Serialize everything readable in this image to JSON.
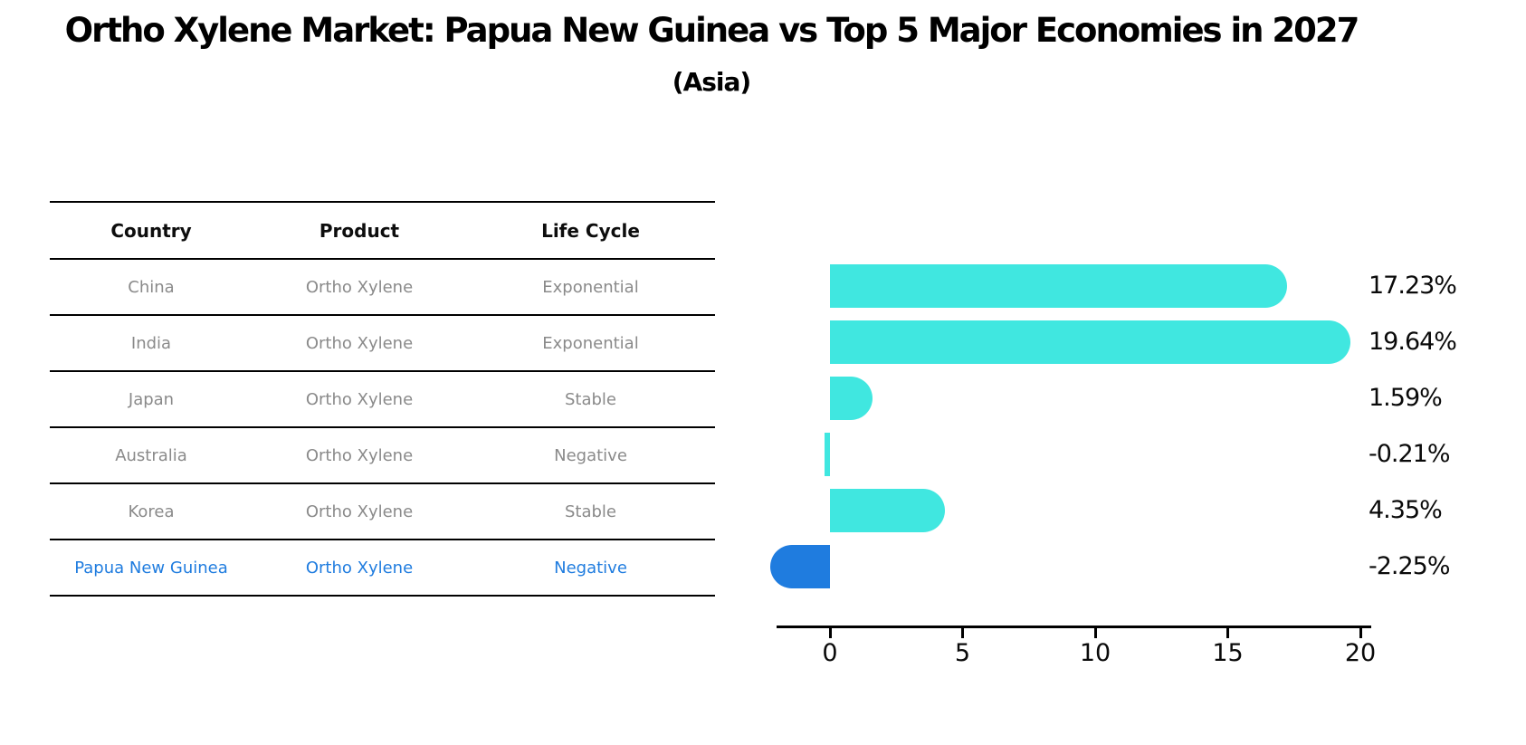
{
  "title": "Ortho Xylene Market: Papua New Guinea vs Top 5 Major Economies in 2027",
  "subtitle": "(Asia)",
  "table": {
    "headers": [
      "Country",
      "Product",
      "Life Cycle"
    ],
    "rows": [
      {
        "country": "China",
        "product": "Ortho Xylene",
        "life_cycle": "Exponential",
        "highlight": false
      },
      {
        "country": "India",
        "product": "Ortho Xylene",
        "life_cycle": "Exponential",
        "highlight": false
      },
      {
        "country": "Japan",
        "product": "Ortho Xylene",
        "life_cycle": "Stable",
        "highlight": false
      },
      {
        "country": "Australia",
        "product": "Ortho Xylene",
        "life_cycle": "Negative",
        "highlight": false
      },
      {
        "country": "Korea",
        "product": "Ortho Xylene",
        "life_cycle": "Stable",
        "highlight": false
      },
      {
        "country": "Papua New Guinea",
        "product": "Ortho Xylene",
        "life_cycle": "Negative",
        "highlight": true
      }
    ]
  },
  "chart_data": {
    "type": "bar",
    "orientation": "horizontal",
    "title": "Ortho Xylene Market: Papua New Guinea vs Top 5 Major Economies in 2027",
    "subtitle": "(Asia)",
    "categories": [
      "China",
      "India",
      "Japan",
      "Australia",
      "Korea",
      "Papua New Guinea"
    ],
    "values": [
      17.23,
      19.64,
      1.59,
      -0.21,
      4.35,
      -2.25
    ],
    "value_labels": [
      "17.23%",
      "19.64%",
      "1.59%",
      "-0.21%",
      "4.35%",
      "-2.25%"
    ],
    "unit": "%",
    "xticks": [
      0,
      5,
      10,
      15,
      20
    ],
    "xlim": [
      -3.5,
      22.5
    ],
    "grid": false,
    "legend": false,
    "bar_color": "#40E7E0",
    "highlight_bar_color": "#1F7CDF",
    "highlight_category": "Papua New Guinea",
    "highlight_border_style": "dotted"
  },
  "colors": {
    "bar_cyan": "#40E7E0",
    "highlight_blue": "#1F7CDF",
    "table_text_gray": "#8a8a8a",
    "text_black": "#000000"
  }
}
